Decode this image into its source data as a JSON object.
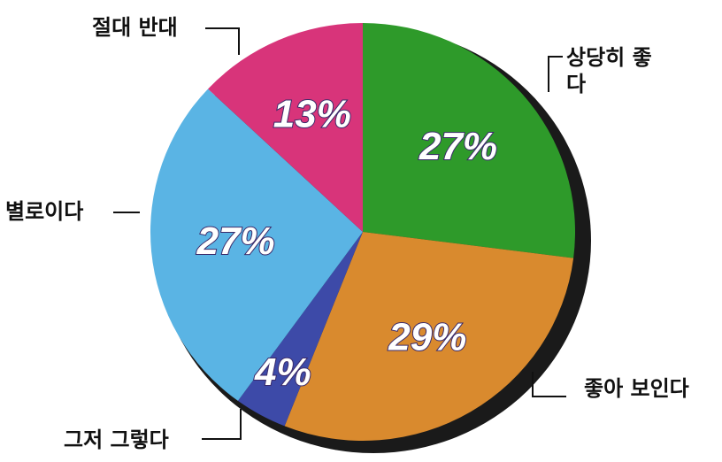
{
  "chart_data": {
    "type": "pie",
    "categories": [
      "상당히 좋다",
      "좋아 보인다",
      "그저 그렇다",
      "별로이다",
      "절대 반대"
    ],
    "values": [
      27,
      29,
      4,
      27,
      13
    ],
    "value_labels": [
      "27%",
      "29%",
      "4%",
      "27%",
      "13%"
    ],
    "colors": [
      "#2e9a2a",
      "#d98a2e",
      "#3d4aa8",
      "#5ab4e4",
      "#d8347a"
    ]
  }
}
